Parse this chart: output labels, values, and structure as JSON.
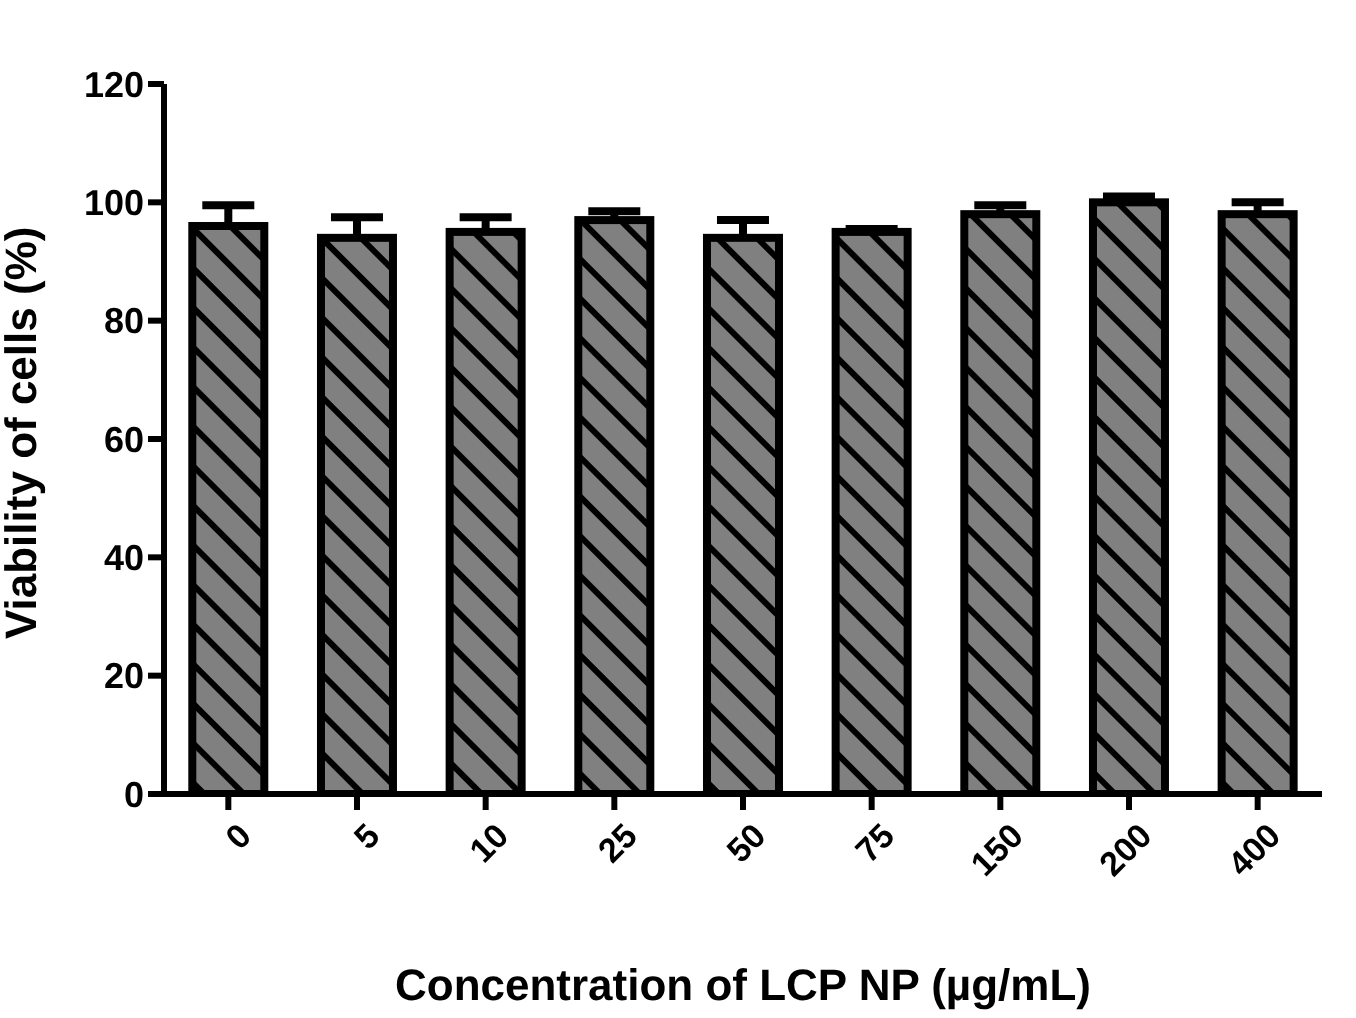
{
  "chart_data": {
    "type": "bar",
    "xlabel": "Concentration of LCP NP (µg/mL)",
    "ylabel": "Viability of cells (%)",
    "categories": [
      "0",
      "5",
      "10",
      "25",
      "50",
      "75",
      "150",
      "200",
      "400"
    ],
    "values": [
      96,
      94,
      95,
      97,
      94,
      95,
      98,
      100,
      98
    ],
    "errors": [
      3.5,
      3.5,
      2.5,
      1.5,
      3,
      0.5,
      1.5,
      1,
      2
    ],
    "color": "#808080",
    "ylim": [
      0,
      120
    ],
    "yticks": [
      0,
      20,
      40,
      60,
      80,
      100,
      120
    ],
    "grid": false,
    "legend": false
  }
}
